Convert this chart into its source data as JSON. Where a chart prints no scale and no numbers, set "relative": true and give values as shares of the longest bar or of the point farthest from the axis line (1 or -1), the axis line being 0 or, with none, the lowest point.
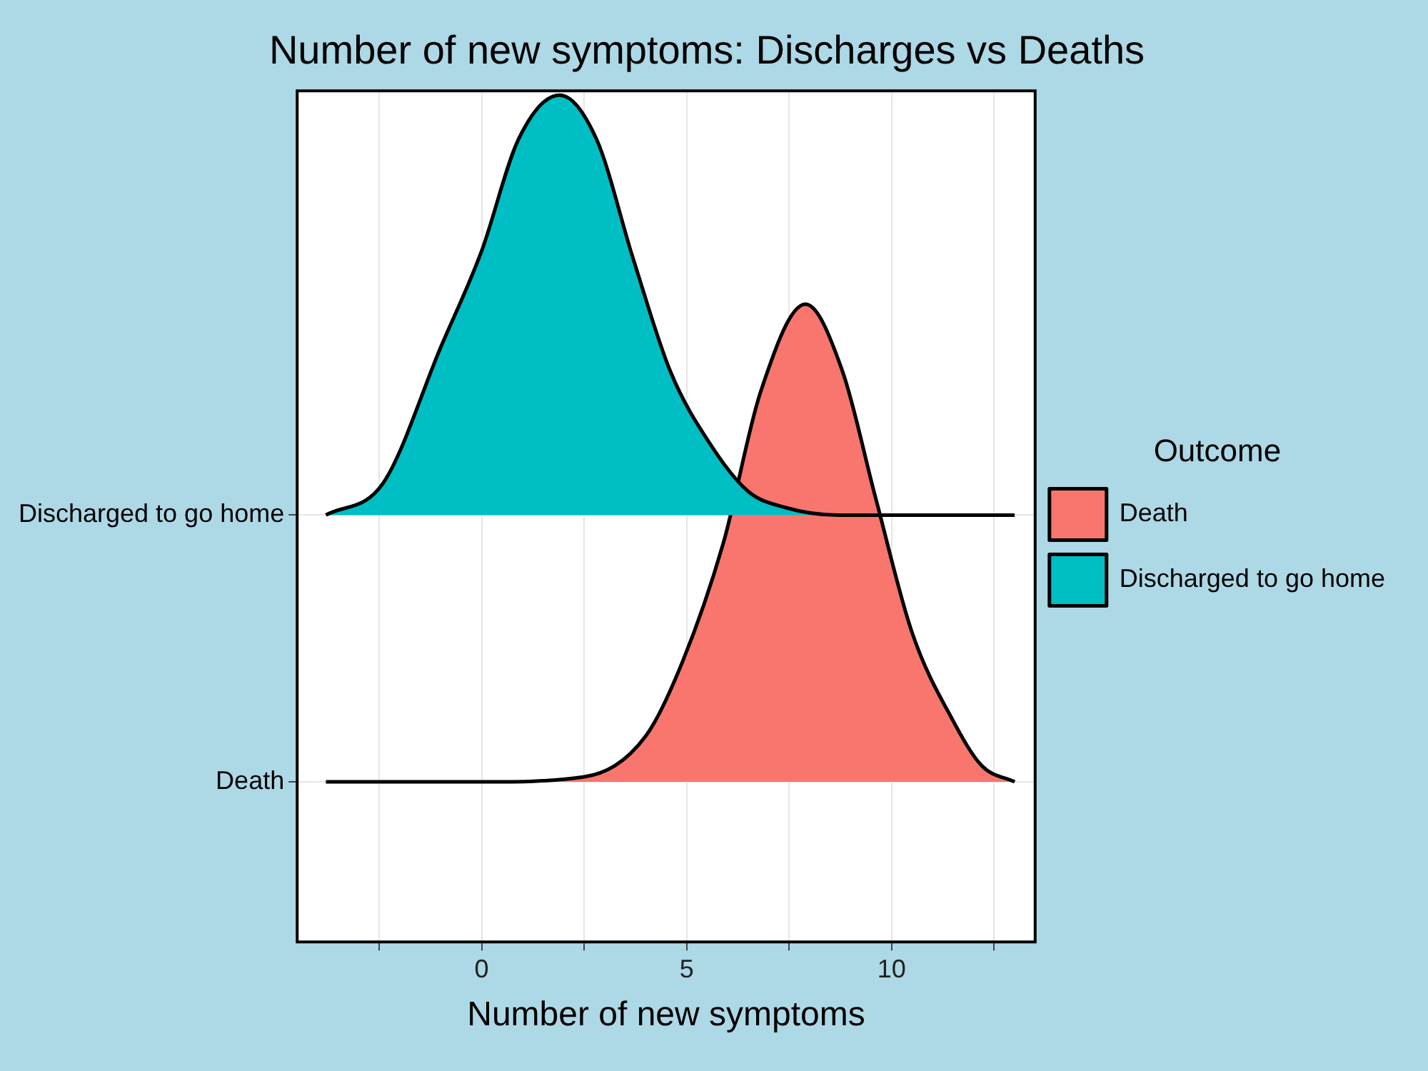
{
  "chart_data": {
    "type": "area",
    "relative": true,
    "title": "Number of new symptoms: Discharges vs Deaths",
    "xlabel": "Number of new symptoms",
    "legend_title": "Outcome",
    "legend": "right",
    "grid": true,
    "marker": "none",
    "line_style": "solid",
    "xlim": [
      -4.5,
      13.5
    ],
    "xticks": [
      {
        "value": -2.5,
        "label": null
      },
      0,
      {
        "value": 2.5,
        "label": null
      },
      5,
      {
        "value": 7.5,
        "label": null
      },
      10,
      {
        "value": 12.5,
        "label": null
      }
    ],
    "y_categories": [
      "Discharged to go home",
      "Death"
    ],
    "series": [
      {
        "name": "Discharged to go home",
        "color": "#00bfc4",
        "x": [
          -3.8,
          -2.4,
          -1,
          0,
          0.9,
          1.9,
          2.8,
          3.7,
          4.6,
          5.6,
          6.5,
          7.4,
          8.7,
          13
        ],
        "values": [
          0.504,
          0.542,
          0.702,
          0.816,
          0.948,
          1,
          0.948,
          0.806,
          0.674,
          0.586,
          0.532,
          0.513,
          0.504,
          0.504
        ]
      },
      {
        "name": "Death",
        "color": "#f8766d",
        "x": [
          -3.8,
          0,
          2.5,
          4,
          4.9,
          5.9,
          6.8,
          7.9,
          8.8,
          9.6,
          10.5,
          11.5,
          12.2,
          13
        ],
        "values": [
          0.189,
          0.189,
          0.195,
          0.243,
          0.331,
          0.472,
          0.649,
          0.753,
          0.674,
          0.526,
          0.365,
          0.261,
          0.208,
          0.189
        ]
      }
    ]
  }
}
